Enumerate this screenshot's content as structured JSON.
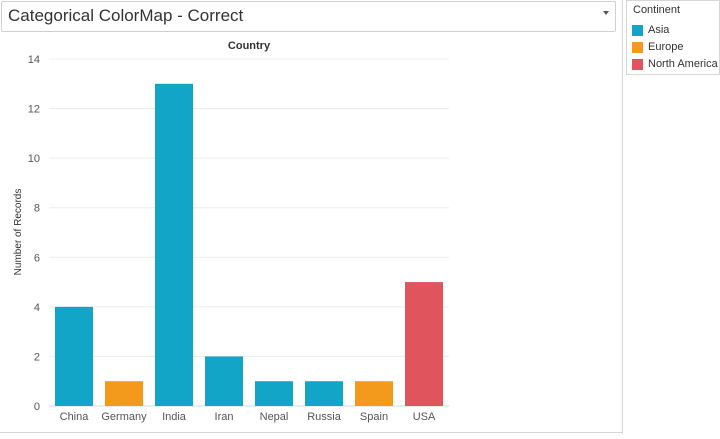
{
  "sheet": {
    "title": "Categorical ColorMap - Correct"
  },
  "legend": {
    "title": "Continent",
    "items": [
      {
        "label": "Asia",
        "color": "#12a5c8"
      },
      {
        "label": "Europe",
        "color": "#f39a1c"
      },
      {
        "label": "North America",
        "color": "#e0545d"
      }
    ]
  },
  "chart_data": {
    "type": "bar",
    "title": "Country",
    "xlabel": "",
    "ylabel": "Number of Records",
    "ylim": [
      0,
      14
    ],
    "yticks": [
      0,
      2,
      4,
      6,
      8,
      10,
      12,
      14
    ],
    "grid": true,
    "legend_position": "right",
    "categories": [
      "China",
      "Germany",
      "India",
      "Iran",
      "Nepal",
      "Russia",
      "Spain",
      "USA"
    ],
    "values": [
      4,
      1,
      13,
      2,
      1,
      1,
      1,
      5
    ],
    "groups": [
      "Asia",
      "Europe",
      "Asia",
      "Asia",
      "Asia",
      "Asia",
      "Europe",
      "North America"
    ]
  }
}
